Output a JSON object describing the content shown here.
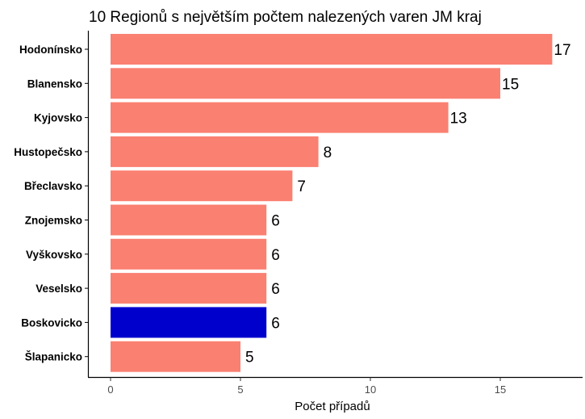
{
  "chart_data": {
    "type": "bar",
    "orientation": "horizontal",
    "title": "10 Regionů s největším počtem nalezených varen JM kraj",
    "xlabel": "Počet případů",
    "ylabel": "",
    "categories": [
      "Hodonínsko",
      "Blanensko",
      "Kyjovsko",
      "Hustopečsko",
      "Břeclavsko",
      "Znojemsko",
      "Vyškovsko",
      "Veselsko",
      "Boskovicko",
      "Šlapanicko"
    ],
    "values": [
      17,
      15,
      13,
      8,
      7,
      6,
      6,
      6,
      6,
      5
    ],
    "highlight": "Boskovicko",
    "colors": {
      "default": "#FA8072",
      "highlight": "#0000CD"
    },
    "xticks": [
      0,
      5,
      10,
      15
    ],
    "xlim": [
      0,
      18
    ],
    "grid": false,
    "legend": "none"
  }
}
